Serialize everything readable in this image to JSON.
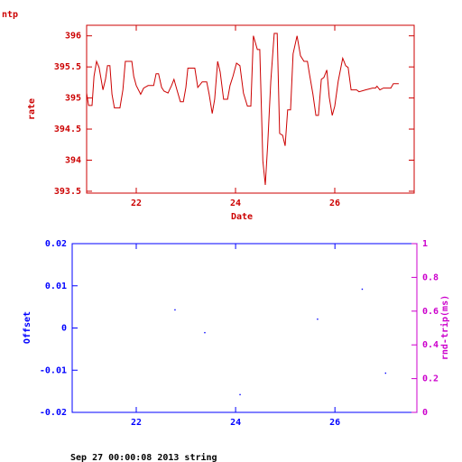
{
  "chart_data": [
    {
      "type": "line",
      "title": "ntp",
      "ylabel": "rate",
      "xlabel": "Date",
      "color": "#cc0000",
      "xlim": [
        21.0,
        27.6
      ],
      "xticks": [
        22,
        24,
        26
      ],
      "ylim": [
        393.47,
        396.17
      ],
      "yticks": [
        393.5,
        394,
        394.5,
        395,
        395.5,
        396
      ],
      "x": [
        21.0,
        21.04,
        21.11,
        21.15,
        21.2,
        21.25,
        21.33,
        21.38,
        21.42,
        21.47,
        21.51,
        21.56,
        21.67,
        21.73,
        21.78,
        21.91,
        21.95,
        22.0,
        22.09,
        22.15,
        22.24,
        22.35,
        22.4,
        22.45,
        22.51,
        22.56,
        22.64,
        22.71,
        22.76,
        22.82,
        22.89,
        22.95,
        23.0,
        23.04,
        23.18,
        23.24,
        23.33,
        23.42,
        23.47,
        23.53,
        23.58,
        23.64,
        23.69,
        23.76,
        23.84,
        23.89,
        23.95,
        24.02,
        24.09,
        24.16,
        24.24,
        24.31,
        24.36,
        24.44,
        24.49,
        24.55,
        24.6,
        24.65,
        24.71,
        24.78,
        24.84,
        24.89,
        24.95,
        25.0,
        25.05,
        25.11,
        25.16,
        25.24,
        25.31,
        25.38,
        25.45,
        25.49,
        25.56,
        25.62,
        25.67,
        25.73,
        25.78,
        25.84,
        25.89,
        25.95,
        26.0,
        26.07,
        26.16,
        26.22,
        26.27,
        26.33,
        26.44,
        26.49,
        26.62,
        26.76,
        26.82,
        26.85,
        26.91,
        26.98,
        27.13,
        27.18,
        27.29
      ],
      "values": [
        395.08,
        394.88,
        394.88,
        395.35,
        395.59,
        395.49,
        395.13,
        395.3,
        395.52,
        395.52,
        395.06,
        394.84,
        394.84,
        395.13,
        395.59,
        395.59,
        395.35,
        395.2,
        395.06,
        395.16,
        395.2,
        395.2,
        395.39,
        395.39,
        395.17,
        395.11,
        395.08,
        395.2,
        395.3,
        395.13,
        394.94,
        394.94,
        395.17,
        395.48,
        395.48,
        395.17,
        395.26,
        395.26,
        395.06,
        394.75,
        394.98,
        395.59,
        395.42,
        394.98,
        394.98,
        395.2,
        395.35,
        395.56,
        395.52,
        395.08,
        394.87,
        394.87,
        396.0,
        395.78,
        395.78,
        393.99,
        393.6,
        394.26,
        395.27,
        396.04,
        396.04,
        394.43,
        394.4,
        394.23,
        394.81,
        394.81,
        395.71,
        396.0,
        395.68,
        395.59,
        395.59,
        395.39,
        395.06,
        394.72,
        394.72,
        395.3,
        395.33,
        395.45,
        395.01,
        394.72,
        394.87,
        395.27,
        395.64,
        395.52,
        395.49,
        395.13,
        395.13,
        395.1,
        395.13,
        395.16,
        395.16,
        395.19,
        395.13,
        395.16,
        395.16,
        395.23,
        395.23
      ]
    },
    {
      "type": "scatter",
      "ylabel": "Offset",
      "y2label": "rnd-trip(ms)",
      "color": "#0000ff",
      "y2color": "#cc00cc",
      "xlim": [
        20.71,
        27.65
      ],
      "xticks": [
        22,
        24,
        26
      ],
      "ylim": [
        -0.02,
        0.02
      ],
      "yticks": [
        -0.02,
        -0.01,
        0,
        0.01,
        0.02
      ],
      "y2lim": [
        0,
        1
      ],
      "y2ticks": [
        0,
        0.2,
        0.4,
        0.6,
        0.8,
        1
      ],
      "x": [
        22.78,
        23.38,
        24.09,
        25.65,
        26.55,
        27.02
      ],
      "values": [
        0.0043,
        -0.0011,
        -0.0158,
        0.0021,
        0.0092,
        -0.0107
      ]
    }
  ],
  "footer": "Sep 27 00:00:08 2013 string"
}
